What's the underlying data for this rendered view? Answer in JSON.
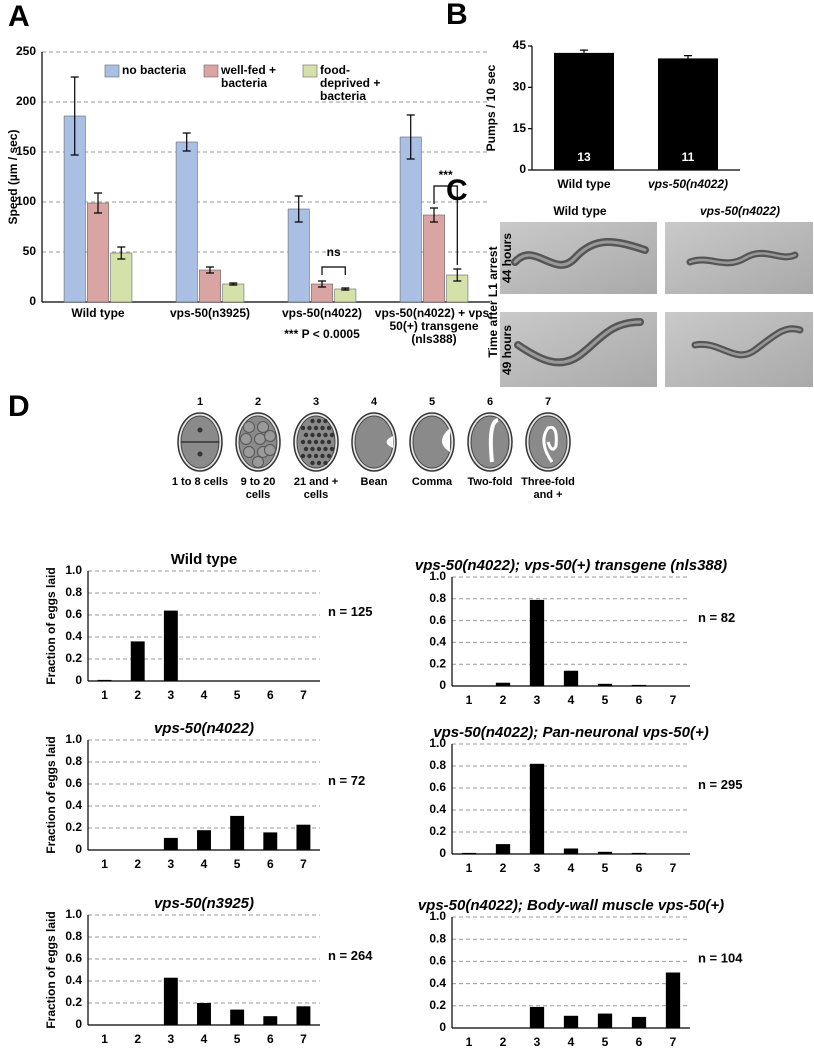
{
  "panels": [
    "A",
    "B",
    "C",
    "D"
  ],
  "panel_c": {
    "columns": [
      "Wild type",
      "vps-50(n4022)"
    ],
    "row_title": "Time after L1 arrest",
    "rows": [
      "44 hours",
      "49 hours"
    ]
  },
  "stages": [
    {
      "number": 1,
      "label": "1 to 8 cells"
    },
    {
      "number": 2,
      "label": "9 to 20 cells"
    },
    {
      "number": 3,
      "label": "21 and + cells"
    },
    {
      "number": 4,
      "label": "Bean"
    },
    {
      "number": 5,
      "label": "Comma"
    },
    {
      "number": 6,
      "label": "Two-fold"
    },
    {
      "number": 7,
      "label": "Three-fold and +"
    }
  ],
  "chart_data": [
    {
      "type": "bar",
      "ylabel": "Speed (µm / sec)",
      "categories": [
        "Wild type",
        "vps-50(n3925)",
        "vps-50(n4022)",
        "vps-50(n4022) + vps-50(+) transgene (nls388)"
      ],
      "series": [
        {
          "name": "no bacteria",
          "color": "#a9bfe3",
          "values": [
            186,
            160,
            93,
            165
          ],
          "errors": [
            39,
            9,
            13,
            22
          ]
        },
        {
          "name": "well-fed + bacteria",
          "color": "#d9a4a1",
          "values": [
            99,
            32,
            18,
            87
          ],
          "errors": [
            10,
            3,
            3,
            7
          ]
        },
        {
          "name": "food-deprived + bacteria",
          "color": "#d4e1a9",
          "values": [
            49,
            18,
            13,
            27
          ],
          "errors": [
            6,
            1,
            1,
            6
          ]
        }
      ],
      "annotations": [
        "ns",
        "***",
        "*** P < 0.0005"
      ],
      "ylim": [
        0,
        250
      ],
      "yticks": [
        0,
        50,
        100,
        150,
        200,
        250
      ],
      "grid": true
    },
    {
      "type": "bar",
      "ylabel": "Pumps / 10 sec",
      "categories": [
        "Wild type",
        "vps-50(n4022)"
      ],
      "values": [
        42.5,
        40.5
      ],
      "errors": [
        1,
        1
      ],
      "n": [
        13,
        11
      ],
      "color": "#000000",
      "ylim": [
        0,
        45
      ],
      "yticks": [
        0,
        15,
        30,
        45
      ],
      "grid": false
    },
    {
      "type": "bar",
      "title": "Wild type",
      "ylabel": "Fraction of eggs laid",
      "annotation": "n = 125",
      "categories": [
        "1",
        "2",
        "3",
        "4",
        "5",
        "6",
        "7"
      ],
      "values": [
        0.01,
        0.36,
        0.64,
        0,
        0,
        0,
        0
      ],
      "color": "#000000",
      "ylim": [
        0,
        1
      ],
      "yticks": [
        0,
        0.2,
        0.4,
        0.6,
        0.8,
        {
          "value": 1,
          "label": "1.0"
        }
      ],
      "grid": true
    },
    {
      "type": "bar",
      "title": "vps-50(n4022); vps-50(+) transgene (nls388)",
      "annotation": "n = 82",
      "categories": [
        "1",
        "2",
        "3",
        "4",
        "5",
        "6",
        "7"
      ],
      "values": [
        0,
        0.03,
        0.79,
        0.14,
        0.02,
        0.01,
        0
      ],
      "color": "#000000",
      "ylim": [
        0,
        1
      ],
      "yticks": [
        0,
        0.2,
        0.4,
        0.6,
        0.8,
        {
          "value": 1,
          "label": "1.0"
        }
      ],
      "grid": true
    },
    {
      "type": "bar",
      "title": "vps-50(n4022)",
      "ylabel": "Fraction of eggs laid",
      "annotation": "n = 72",
      "categories": [
        "1",
        "2",
        "3",
        "4",
        "5",
        "6",
        "7"
      ],
      "values": [
        0,
        0,
        0.11,
        0.18,
        0.31,
        0.16,
        0.23
      ],
      "color": "#000000",
      "ylim": [
        0,
        1
      ],
      "yticks": [
        0,
        0.2,
        0.4,
        0.6,
        0.8,
        {
          "value": 1,
          "label": "1.0"
        }
      ],
      "grid": true
    },
    {
      "type": "bar",
      "title": "vps-50(n4022); Pan-neuronal vps-50(+)",
      "annotation": "n = 295",
      "categories": [
        "1",
        "2",
        "3",
        "4",
        "5",
        "6",
        "7"
      ],
      "values": [
        0.01,
        0.09,
        0.82,
        0.05,
        0.02,
        0.01,
        0
      ],
      "color": "#000000",
      "ylim": [
        0,
        1
      ],
      "yticks": [
        0,
        0.2,
        0.4,
        0.6,
        0.8,
        {
          "value": 1,
          "label": "1.0"
        }
      ],
      "grid": true
    },
    {
      "type": "bar",
      "title": "vps-50(n3925)",
      "ylabel": "Fraction of eggs laid",
      "annotation": "n = 264",
      "categories": [
        "1",
        "2",
        "3",
        "4",
        "5",
        "6",
        "7"
      ],
      "values": [
        0,
        0,
        0.43,
        0.2,
        0.14,
        0.08,
        0.17
      ],
      "color": "#000000",
      "ylim": [
        0,
        1
      ],
      "yticks": [
        0,
        0.2,
        0.4,
        0.6,
        0.8,
        {
          "value": 1,
          "label": "1.0"
        }
      ],
      "grid": true
    },
    {
      "type": "bar",
      "title": "vps-50(n4022); Body-wall muscle vps-50(+)",
      "annotation": "n = 104",
      "categories": [
        "1",
        "2",
        "3",
        "4",
        "5",
        "6",
        "7"
      ],
      "values": [
        0,
        0,
        0.19,
        0.11,
        0.13,
        0.1,
        0.5
      ],
      "color": "#000000",
      "ylim": [
        0,
        1
      ],
      "yticks": [
        0,
        0.2,
        0.4,
        0.6,
        0.8,
        {
          "value": 1,
          "label": "1.0"
        }
      ],
      "grid": true
    }
  ]
}
